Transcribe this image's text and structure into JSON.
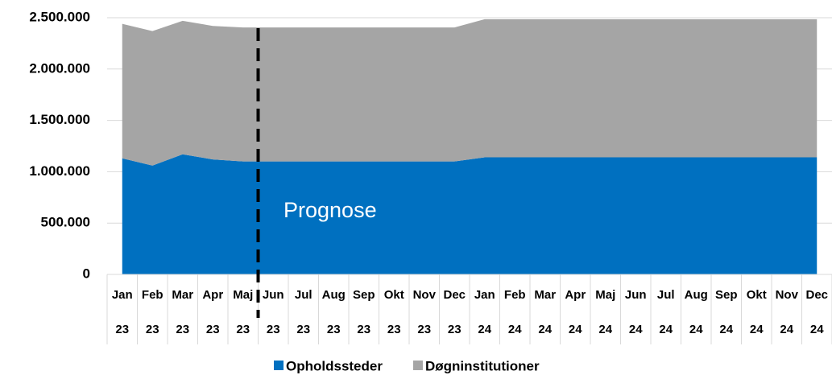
{
  "chart_data": {
    "type": "area",
    "stacked": true,
    "categories": [
      "Jan 23",
      "Feb 23",
      "Mar 23",
      "Apr 23",
      "Maj 23",
      "Jun 23",
      "Jul 23",
      "Aug 23",
      "Sep 23",
      "Okt 23",
      "Nov 23",
      "Dec 23",
      "Jan 24",
      "Feb 24",
      "Mar 24",
      "Apr 24",
      "Maj 24",
      "Jun 24",
      "Jul 24",
      "Aug 24",
      "Sep 24",
      "Okt 24",
      "Nov 24",
      "Dec 24"
    ],
    "series": [
      {
        "name": "Opholdssteder",
        "color": "#0070c0",
        "values": [
          1130000,
          1060000,
          1170000,
          1120000,
          1100000,
          1100000,
          1100000,
          1100000,
          1100000,
          1100000,
          1100000,
          1100000,
          1140000,
          1140000,
          1140000,
          1140000,
          1140000,
          1140000,
          1140000,
          1140000,
          1140000,
          1140000,
          1140000,
          1140000
        ]
      },
      {
        "name": "Døgninstitutioner",
        "color": "#a5a5a5",
        "values": [
          1310000,
          1310000,
          1300000,
          1300000,
          1305000,
          1305000,
          1305000,
          1305000,
          1305000,
          1305000,
          1305000,
          1305000,
          1345000,
          1345000,
          1345000,
          1345000,
          1345000,
          1345000,
          1345000,
          1345000,
          1345000,
          1345000,
          1345000,
          1345000
        ]
      }
    ],
    "ylim": [
      0,
      2500000
    ],
    "yticks": [
      0,
      {
        "value": 500000,
        "label": "500.000"
      },
      {
        "value": 1000000,
        "label": "1.000.000"
      },
      {
        "value": 1500000,
        "label": "1.500.000"
      },
      {
        "value": 2000000,
        "label": "2.000.000"
      },
      {
        "value": 2500000,
        "label": "2.500.000"
      }
    ],
    "grid": true,
    "annotation": "Prognose",
    "legend": "bottom"
  }
}
